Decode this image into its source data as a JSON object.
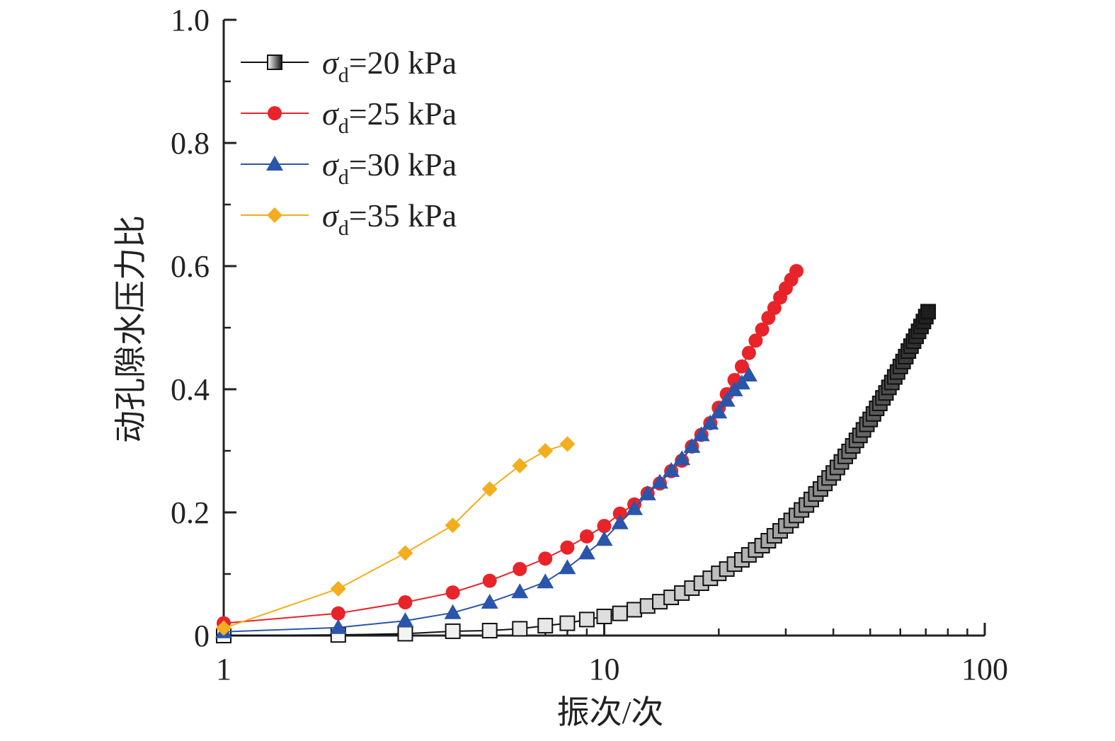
{
  "chart_data": {
    "type": "line",
    "title": "",
    "xlabel": "振次/次",
    "ylabel": "动孔隙水压力比",
    "x_scale": "log",
    "xlim": [
      1,
      100
    ],
    "ylim": [
      0,
      1.0
    ],
    "x_ticks": [
      "1",
      "10",
      "100"
    ],
    "y_ticks": [
      "0",
      "0.2",
      "0.4",
      "0.6",
      "0.8",
      "1.0"
    ],
    "grid": false,
    "legend_position": "top-left",
    "series": [
      {
        "name": "σd=20 kPa",
        "legend_symbol": "σ",
        "legend_sub": "d",
        "legend_rest": "=20 kPa",
        "color": "#111111",
        "marker": "square",
        "marker_fill": "gradient-light-to-dark",
        "x": [
          1,
          2,
          3,
          4,
          5,
          6,
          7,
          8,
          9,
          10,
          11,
          12,
          13,
          14,
          15,
          16,
          17,
          18,
          19,
          20,
          21,
          22,
          23,
          24,
          25,
          26,
          27,
          28,
          29,
          30,
          31,
          32,
          33,
          34,
          35,
          36,
          37,
          38,
          39,
          40,
          41,
          42,
          43,
          44,
          45,
          46,
          47,
          48,
          49,
          50,
          51,
          52,
          53,
          54,
          55,
          56,
          57,
          58,
          59,
          60,
          61,
          62,
          63,
          64,
          65,
          66,
          67,
          68,
          69,
          70,
          71
        ],
        "y": [
          0.0,
          0.001,
          0.003,
          0.007,
          0.008,
          0.011,
          0.016,
          0.02,
          0.026,
          0.031,
          0.036,
          0.042,
          0.048,
          0.055,
          0.062,
          0.069,
          0.077,
          0.085,
          0.093,
          0.101,
          0.108,
          0.116,
          0.123,
          0.131,
          0.139,
          0.146,
          0.154,
          0.162,
          0.17,
          0.178,
          0.187,
          0.195,
          0.204,
          0.212,
          0.221,
          0.23,
          0.238,
          0.247,
          0.256,
          0.264,
          0.273,
          0.282,
          0.291,
          0.299,
          0.308,
          0.317,
          0.325,
          0.334,
          0.343,
          0.351,
          0.36,
          0.369,
          0.377,
          0.386,
          0.394,
          0.403,
          0.411,
          0.42,
          0.428,
          0.437,
          0.445,
          0.453,
          0.462,
          0.47,
          0.478,
          0.486,
          0.494,
          0.502,
          0.51,
          0.518,
          0.526
        ]
      },
      {
        "name": "σd=25 kPa",
        "legend_symbol": "σ",
        "legend_sub": "d",
        "legend_rest": "=25 kPa",
        "color": "#e8242a",
        "marker": "circle",
        "x": [
          1,
          2,
          3,
          4,
          5,
          6,
          7,
          8,
          9,
          10,
          11,
          12,
          13,
          14,
          15,
          16,
          17,
          18,
          19,
          20,
          21,
          22,
          23,
          24,
          25,
          26,
          27,
          28,
          29,
          30,
          31,
          32
        ],
        "y": [
          0.02,
          0.036,
          0.054,
          0.07,
          0.089,
          0.108,
          0.125,
          0.143,
          0.161,
          0.178,
          0.198,
          0.213,
          0.231,
          0.247,
          0.267,
          0.284,
          0.307,
          0.326,
          0.345,
          0.37,
          0.392,
          0.415,
          0.437,
          0.459,
          0.479,
          0.497,
          0.516,
          0.532,
          0.549,
          0.564,
          0.578,
          0.592
        ]
      },
      {
        "name": "σd=30 kPa",
        "legend_symbol": "σ",
        "legend_sub": "d",
        "legend_rest": "=30 kPa",
        "color": "#2b55aa",
        "marker": "triangle",
        "x": [
          1,
          2,
          3,
          4,
          5,
          6,
          7,
          8,
          9,
          10,
          11,
          12,
          13,
          14,
          15,
          16,
          17,
          18,
          19,
          20,
          21,
          22,
          23,
          24
        ],
        "y": [
          0.006,
          0.013,
          0.024,
          0.037,
          0.054,
          0.071,
          0.087,
          0.11,
          0.134,
          0.156,
          0.183,
          0.206,
          0.23,
          0.249,
          0.268,
          0.287,
          0.307,
          0.326,
          0.345,
          0.363,
          0.382,
          0.399,
          0.41,
          0.423
        ]
      },
      {
        "name": "σd=35 kPa",
        "legend_symbol": "σ",
        "legend_sub": "d",
        "legend_rest": "=35 kPa",
        "color": "#f2ae1c",
        "marker": "diamond",
        "x": [
          1,
          2,
          3,
          4,
          5,
          6,
          7,
          8
        ],
        "y": [
          0.012,
          0.076,
          0.134,
          0.179,
          0.238,
          0.276,
          0.3,
          0.311
        ]
      }
    ]
  }
}
